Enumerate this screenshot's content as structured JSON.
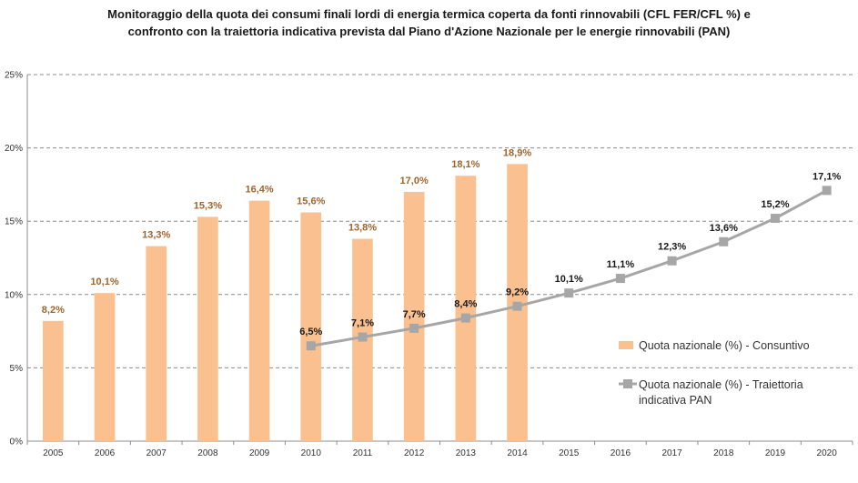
{
  "chart_data": {
    "type": "bar",
    "title_lines": [
      "Monitoraggio della quota dei consumi finali lordi di energia termica coperta da fonti rinnovabili (CFL FER/CFL %) e",
      "confronto con la traiettoria indicativa prevista dal Piano d'Azione Nazionale per le energie rinnovabili (PAN)"
    ],
    "categories": [
      "2005",
      "2006",
      "2007",
      "2008",
      "2009",
      "2010",
      "2011",
      "2012",
      "2013",
      "2014",
      "2015",
      "2016",
      "2017",
      "2018",
      "2019",
      "2020"
    ],
    "ylim": [
      0,
      25
    ],
    "yticks": [
      0,
      5,
      10,
      15,
      20,
      25
    ],
    "ytick_labels": [
      "0%",
      "5%",
      "10%",
      "15%",
      "20%",
      "25%"
    ],
    "grid": "horizontal-dashed",
    "legend_position": "right",
    "series": [
      {
        "name": "Quota nazionale (%) - Consuntivo",
        "type": "bar",
        "color": "#fac090",
        "values": [
          8.2,
          10.1,
          13.3,
          15.3,
          16.4,
          15.6,
          13.8,
          17.0,
          18.1,
          18.9,
          null,
          null,
          null,
          null,
          null,
          null
        ],
        "labels": [
          "8,2%",
          "10,1%",
          "13,3%",
          "15,3%",
          "16,4%",
          "15,6%",
          "13,8%",
          "17,0%",
          "18,1%",
          "18,9%",
          "",
          "",
          "",
          "",
          "",
          ""
        ]
      },
      {
        "name_lines": [
          "Quota nazionale (%) - Traiettoria",
          "indicativa PAN"
        ],
        "type": "line",
        "color": "#a6a6a6",
        "values": [
          null,
          null,
          null,
          null,
          null,
          6.5,
          7.1,
          7.7,
          8.4,
          9.2,
          10.1,
          11.1,
          12.3,
          13.6,
          15.2,
          17.1
        ],
        "labels": [
          "",
          "",
          "",
          "",
          "",
          "6,5%",
          "7,1%",
          "7,7%",
          "8,4%",
          "9,2%",
          "10,1%",
          "11,1%",
          "12,3%",
          "13,6%",
          "15,2%",
          "17,1%"
        ]
      }
    ]
  }
}
